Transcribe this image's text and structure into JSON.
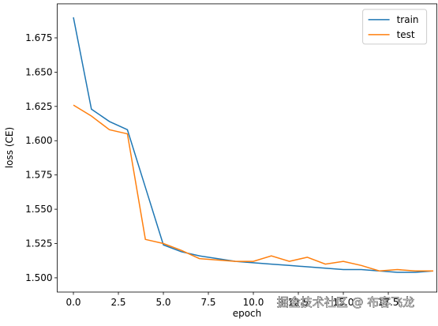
{
  "chart_data": {
    "type": "line",
    "x": [
      0,
      1,
      2,
      3,
      4,
      5,
      6,
      7,
      8,
      9,
      10,
      11,
      12,
      13,
      14,
      15,
      16,
      17,
      18,
      19,
      20
    ],
    "series": [
      {
        "name": "train",
        "color": "#1f77b4",
        "values": [
          1.69,
          1.623,
          1.614,
          1.608,
          1.566,
          1.524,
          1.519,
          1.516,
          1.514,
          1.512,
          1.511,
          1.51,
          1.509,
          1.508,
          1.507,
          1.506,
          1.506,
          1.505,
          1.504,
          1.504,
          1.505
        ]
      },
      {
        "name": "test",
        "color": "#ff7f0e",
        "values": [
          1.626,
          1.618,
          1.608,
          1.605,
          1.528,
          1.525,
          1.52,
          1.514,
          1.513,
          1.512,
          1.512,
          1.516,
          1.512,
          1.515,
          1.51,
          1.512,
          1.509,
          1.505,
          1.506,
          1.505,
          1.505
        ]
      }
    ],
    "xlabel": "epoch",
    "ylabel": "loss (CE)",
    "xlim": [
      -0.9,
      20.2
    ],
    "ylim": [
      1.4896,
      1.6998
    ],
    "xticks": [
      0.0,
      2.5,
      5.0,
      7.5,
      10.0,
      12.5,
      15.0,
      17.5
    ],
    "yticks": [
      {
        "value": 1.5,
        "label": "1.500"
      },
      {
        "value": 1.525,
        "label": "1.525"
      },
      {
        "value": 1.55,
        "label": "1.550"
      },
      {
        "value": 1.575,
        "label": "1.575"
      },
      {
        "value": 1.6,
        "label": "1.600"
      },
      {
        "value": 1.625,
        "label": "1.625"
      },
      {
        "value": 1.65,
        "label": "1.650"
      },
      {
        "value": 1.675,
        "label": "1.675"
      }
    ],
    "xtick_labels": [
      "0.0",
      "2.5",
      "5.0",
      "7.5",
      "10.0",
      "12.5",
      "15.0",
      "17.5"
    ],
    "legend": "upper right",
    "watermark": "掘金技术社区 @ 布客飞龙"
  }
}
